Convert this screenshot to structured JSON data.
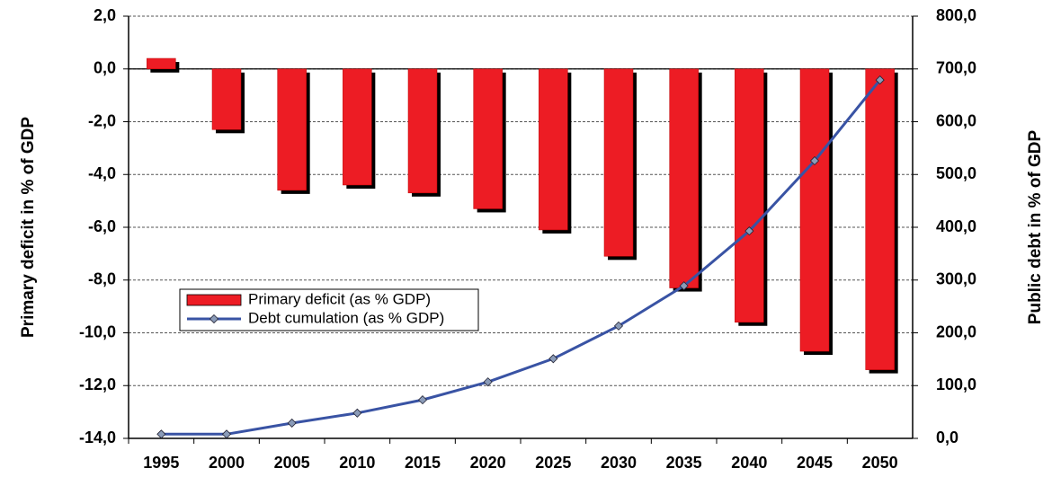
{
  "chart_data": {
    "type": "bar-line",
    "y_label": "Primary deficit in % of GDP",
    "y2_label": "Public debt in % of GDP",
    "categories": [
      "1995",
      "2000",
      "2005",
      "2010",
      "2015",
      "2020",
      "2025",
      "2030",
      "2035",
      "2040",
      "2045",
      "2050"
    ],
    "series": [
      {
        "name": "Primary deficit (as % GDP)",
        "color": "#ed1c24",
        "type": "bar",
        "values": [
          0.4,
          -2.3,
          -4.6,
          -4.4,
          -4.7,
          -5.3,
          -6.1,
          -7.1,
          -8.3,
          -9.6,
          -10.7,
          -11.4
        ]
      },
      {
        "name": "Debt cumulation (as % GDP)",
        "color": "#3953a4",
        "type": "line",
        "axis": "y2",
        "values": [
          8,
          8,
          29,
          48,
          73,
          107,
          151,
          213,
          289,
          393,
          526,
          679
        ]
      }
    ],
    "ylim": [
      -14,
      2
    ],
    "yticks": [
      {
        "value": 2,
        "label": "2,0"
      },
      {
        "value": 0,
        "label": "0,0"
      },
      {
        "value": -2,
        "label": "-2,0"
      },
      {
        "value": -4,
        "label": "-4,0"
      },
      {
        "value": -6,
        "label": "-6,0"
      },
      {
        "value": -8,
        "label": "-8,0"
      },
      {
        "value": -10,
        "label": "-10,0"
      },
      {
        "value": -12,
        "label": "-12,0"
      },
      {
        "value": -14,
        "label": "-14,0"
      }
    ],
    "y2lim": [
      0,
      800
    ],
    "y2ticks": [
      {
        "value": 0,
        "label": "0,0"
      },
      {
        "value": 100,
        "label": "100,0"
      },
      {
        "value": 200,
        "label": "200,0"
      },
      {
        "value": 300,
        "label": "300,0"
      },
      {
        "value": 400,
        "label": "400,0"
      },
      {
        "value": 500,
        "label": "500,0"
      },
      {
        "value": 600,
        "label": "600,0"
      },
      {
        "value": 700,
        "label": "700,0"
      },
      {
        "value": 800,
        "label": "800,0"
      }
    ],
    "grid": true
  }
}
